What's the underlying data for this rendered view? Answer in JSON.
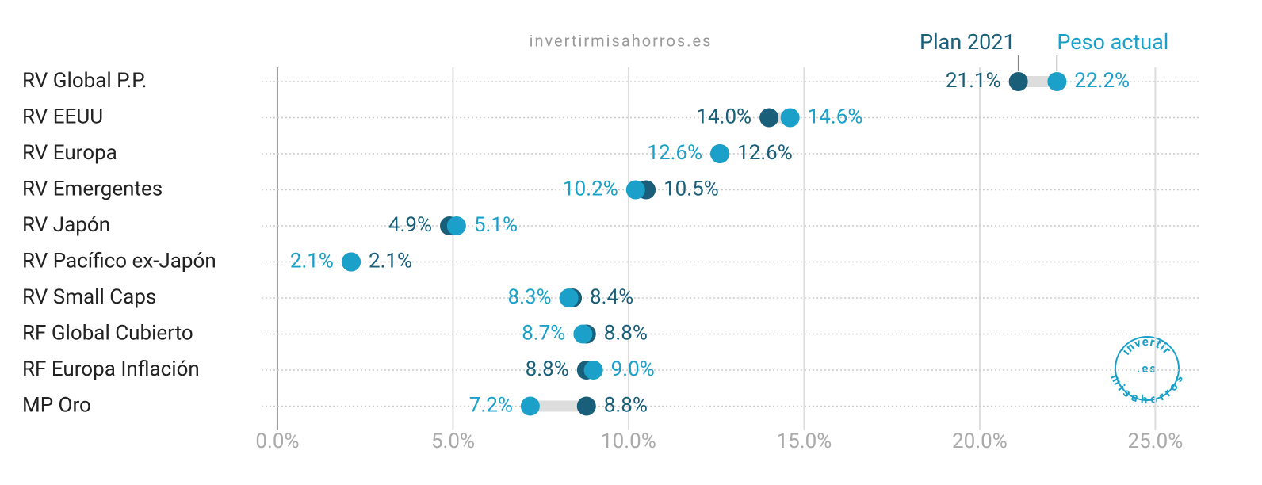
{
  "chart_data": {
    "type": "dumbbell",
    "subtitle": "invertirmisahorros.es",
    "logo": [
      "invertir",
      ".es",
      "misahorros"
    ],
    "categories": [
      "RV Global P.P.",
      "RV EEUU",
      "RV Europa",
      "RV Emergentes",
      "RV Japón",
      "RV Pacífico ex-Japón",
      "RV Small Caps",
      "RF Global Cubierto",
      "RF Europa Inflación",
      "MP Oro"
    ],
    "series": [
      {
        "name": "Plan 2021",
        "color": "#1a5f7a",
        "values": [
          21.1,
          14.0,
          12.6,
          10.5,
          4.9,
          2.1,
          8.4,
          8.8,
          8.8,
          8.8
        ],
        "value_labels": [
          "21.1%",
          "14.0%",
          "12.6%",
          "10.5%",
          "4.9%",
          "2.1%",
          "8.4%",
          "8.8%",
          "8.8%",
          "8.8%"
        ]
      },
      {
        "name": "Peso actual",
        "color": "#1ba1c9",
        "values": [
          22.2,
          14.6,
          12.6,
          10.2,
          5.1,
          2.1,
          8.3,
          8.7,
          9.0,
          7.2
        ],
        "value_labels": [
          "22.2%",
          "14.6%",
          "12.6%",
          "10.2%",
          "5.1%",
          "2.1%",
          "8.3%",
          "8.7%",
          "9.0%",
          "7.2%"
        ]
      }
    ],
    "xlim": [
      -0.45,
      26.3
    ],
    "xticks": [
      {
        "value": 0,
        "label": "0.0%"
      },
      {
        "value": 5,
        "label": "5.0%"
      },
      {
        "value": 10,
        "label": "10.0%"
      },
      {
        "value": 15,
        "label": "15.0%"
      },
      {
        "value": 20,
        "label": "20.0%"
      },
      {
        "value": 25,
        "label": "25.0%"
      }
    ],
    "grid": true
  }
}
